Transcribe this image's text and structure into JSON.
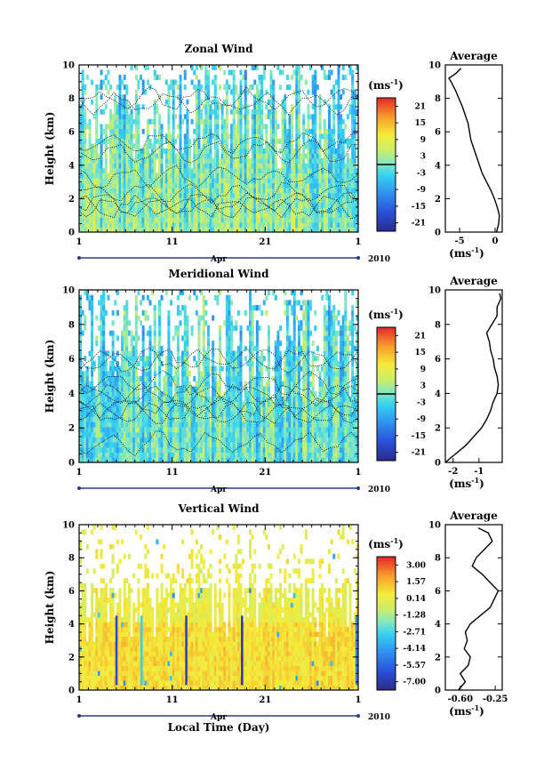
{
  "chart_data": [
    {
      "type": "heatmap",
      "title": "Zonal Wind",
      "ylabel": "Height (km)",
      "yticks": [
        "0",
        "2",
        "4",
        "6",
        "8",
        "10"
      ],
      "ylim": [
        0,
        10
      ],
      "xticks": [
        "1",
        "11",
        "21",
        "1"
      ],
      "month": "Apr",
      "year": "2010",
      "unit_label": "(ms",
      "unit_exp": "-1",
      "unit_close": ")",
      "colorbar_ticks": [
        "21",
        "15",
        "9",
        "3",
        "-3",
        "-9",
        "-15",
        "-21"
      ],
      "colorbar_range": [
        -24,
        24
      ],
      "mean_value": 2,
      "contour_level": 0,
      "profile": {
        "title": "Average",
        "xticks": [
          "-5",
          "0"
        ],
        "xlim": [
          -7,
          1
        ],
        "unit_label": "(ms",
        "unit_exp": "-1",
        "unit_close": ")",
        "heights": [
          0,
          0.5,
          1,
          1.5,
          2,
          2.5,
          3,
          3.5,
          4,
          4.5,
          5,
          5.5,
          6,
          6.5,
          7,
          7.5,
          8,
          8.5,
          9,
          9.2,
          9.5,
          9.8
        ],
        "values": [
          0.2,
          0.5,
          0.6,
          0.3,
          -0.1,
          -0.6,
          -1.2,
          -1.8,
          -2.2,
          -2.6,
          -3,
          -3.4,
          -3.6,
          -3.8,
          -4.2,
          -4.6,
          -5.1,
          -5.6,
          -6.2,
          -6.5,
          -5.5,
          -4.8
        ]
      }
    },
    {
      "type": "heatmap",
      "title": "Meridional Wind",
      "ylabel": "Height (km)",
      "yticks": [
        "0",
        "2",
        "4",
        "6",
        "8",
        "10"
      ],
      "ylim": [
        0,
        10
      ],
      "xticks": [
        "1",
        "11",
        "21",
        "1"
      ],
      "month": "Apr",
      "year": "2010",
      "unit_label": "(ms",
      "unit_exp": "-1",
      "unit_close": ")",
      "colorbar_ticks": [
        "21",
        "15",
        "9",
        "3",
        "-3",
        "-9",
        "-15",
        "-21"
      ],
      "colorbar_range": [
        -24,
        24
      ],
      "mean_value": -1,
      "contour_level": 0,
      "profile": {
        "title": "Average",
        "xticks": [
          "-2",
          "-1"
        ],
        "xlim": [
          -2.3,
          -0.1
        ],
        "unit_label": "(ms",
        "unit_exp": "-1",
        "unit_close": ")",
        "heights": [
          0,
          0.5,
          1,
          1.5,
          2,
          2.5,
          3,
          3.5,
          4,
          4.5,
          5,
          5.5,
          6,
          6.5,
          7,
          7.5,
          8,
          8.5,
          9,
          9.5,
          9.8
        ],
        "values": [
          -2.3,
          -1.9,
          -1.5,
          -1.2,
          -0.9,
          -0.7,
          -0.55,
          -0.45,
          -0.3,
          -0.25,
          -0.3,
          -0.4,
          -0.45,
          -0.55,
          -0.6,
          -0.7,
          -0.5,
          -0.3,
          -0.3,
          -0.15,
          -0.2
        ]
      }
    },
    {
      "type": "heatmap",
      "title": "Vertical Wind",
      "ylabel": "Height (km)",
      "yticks": [
        "0",
        "2",
        "4",
        "6",
        "8",
        "10"
      ],
      "ylim": [
        0,
        10
      ],
      "xticks": [
        "1",
        "11",
        "21",
        "1"
      ],
      "month": "Apr",
      "year": "2010",
      "xlabel": "Local Time (Day)",
      "unit_label": "(ms",
      "unit_exp": "-1",
      "unit_close": ")",
      "colorbar_ticks": [
        "3.00",
        "1.57",
        "0.14",
        "-1.28",
        "-2.71",
        "-4.14",
        "-5.57",
        "-7.00"
      ],
      "colorbar_range": [
        -8,
        4
      ],
      "mean_value": 0.3,
      "profile": {
        "title": "Average",
        "xticks": [
          "-0.60",
          "-0.25"
        ],
        "xlim": [
          -0.75,
          -0.18
        ],
        "unit_label": "(ms",
        "unit_exp": "-1",
        "unit_close": ")",
        "heights": [
          0,
          0.5,
          1,
          1.5,
          2,
          2.5,
          3,
          3.5,
          4,
          4.5,
          5,
          5.5,
          6,
          6.5,
          7,
          7.5,
          8,
          8.5,
          9,
          9.5,
          9.8
        ],
        "values": [
          -0.62,
          -0.55,
          -0.6,
          -0.52,
          -0.5,
          -0.56,
          -0.53,
          -0.55,
          -0.5,
          -0.4,
          -0.3,
          -0.26,
          -0.22,
          -0.3,
          -0.38,
          -0.48,
          -0.44,
          -0.36,
          -0.28,
          -0.32,
          -0.42
        ]
      }
    }
  ]
}
